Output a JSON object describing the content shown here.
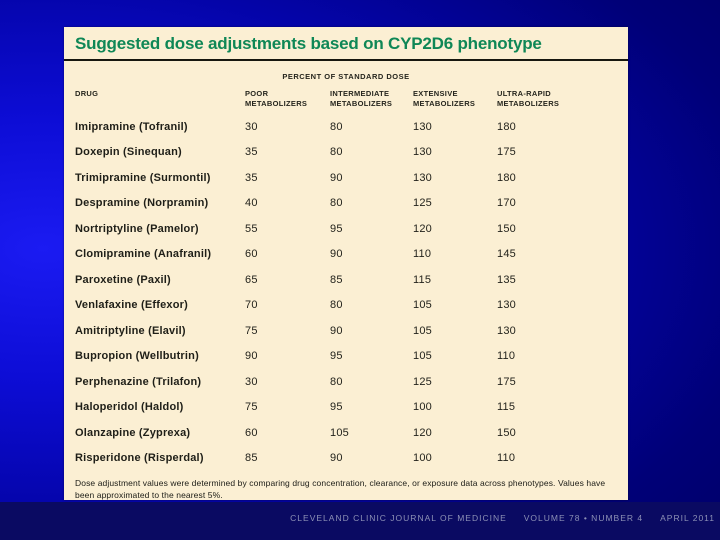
{
  "slide": {
    "title": "Suggested dose adjustments based on CYP2D6 phenotype",
    "table": {
      "group_header": "PERCENT OF STANDARD DOSE",
      "columns": [
        "DRUG",
        "POOR METABOLIZERS",
        "INTERMEDIATE METABOLIZERS",
        "EXTENSIVE METABOLIZERS",
        "ULTRA-RAPID METABOLIZERS"
      ],
      "rows": [
        {
          "drug": "Imipramine (Tofranil)",
          "values": [
            30,
            80,
            130,
            180
          ]
        },
        {
          "drug": "Doxepin (Sinequan)",
          "values": [
            35,
            80,
            130,
            175
          ]
        },
        {
          "drug": "Trimipramine (Surmontil)",
          "values": [
            35,
            90,
            130,
            180
          ]
        },
        {
          "drug": "Despramine (Norpramin)",
          "values": [
            40,
            80,
            125,
            170
          ]
        },
        {
          "drug": "Nortriptyline (Pamelor)",
          "values": [
            55,
            95,
            120,
            150
          ]
        },
        {
          "drug": "Clomipramine (Anafranil)",
          "values": [
            60,
            90,
            110,
            145
          ]
        },
        {
          "drug": "Paroxetine (Paxil)",
          "values": [
            65,
            85,
            115,
            135
          ]
        },
        {
          "drug": "Venlafaxine (Effexor)",
          "values": [
            70,
            80,
            105,
            130
          ]
        },
        {
          "drug": "Amitriptyline (Elavil)",
          "values": [
            75,
            90,
            105,
            130
          ]
        },
        {
          "drug": "Bupropion (Wellbutrin)",
          "values": [
            90,
            95,
            105,
            110
          ]
        },
        {
          "drug": "Perphenazine (Trilafon)",
          "values": [
            30,
            80,
            125,
            175
          ]
        },
        {
          "drug": "Haloperidol (Haldol)",
          "values": [
            75,
            95,
            100,
            115
          ]
        },
        {
          "drug": "Olanzapine (Zyprexa)",
          "values": [
            60,
            105,
            120,
            150
          ]
        },
        {
          "drug": "Risperidone (Risperdal)",
          "values": [
            85,
            90,
            100,
            110
          ]
        }
      ],
      "footnote": "Dose adjustment values were determined by comparing drug concentration, clearance, or exposure data across phenotypes. Values have been approximated to the nearest 5%."
    },
    "footer": {
      "journal": "CLEVELAND CLINIC JOURNAL OF MEDICINE",
      "volume": "VOLUME 78 • NUMBER 4",
      "date": "APRIL 2011"
    },
    "colors": {
      "title_green": "#0F8756",
      "panel_cream": "#FBEFD3",
      "background_blue_bright": "#1B1BF2",
      "background_blue_dark": "#000062",
      "footer_band": "#0A0A62",
      "footer_text": "#8D91B6",
      "body_text": "#23231C"
    }
  },
  "chart_data": {
    "type": "table",
    "title": "Suggested dose adjustments based on CYP2D6 phenotype",
    "group_header": "PERCENT OF STANDARD DOSE",
    "categories": [
      "POOR METABOLIZERS",
      "INTERMEDIATE METABOLIZERS",
      "EXTENSIVE METABOLIZERS",
      "ULTRA-RAPID METABOLIZERS"
    ],
    "series": [
      {
        "name": "Imipramine (Tofranil)",
        "values": [
          30,
          80,
          130,
          180
        ]
      },
      {
        "name": "Doxepin (Sinequan)",
        "values": [
          35,
          80,
          130,
          175
        ]
      },
      {
        "name": "Trimipramine (Surmontil)",
        "values": [
          35,
          90,
          130,
          180
        ]
      },
      {
        "name": "Despramine (Norpramin)",
        "values": [
          40,
          80,
          125,
          170
        ]
      },
      {
        "name": "Nortriptyline (Pamelor)",
        "values": [
          55,
          95,
          120,
          150
        ]
      },
      {
        "name": "Clomipramine (Anafranil)",
        "values": [
          60,
          90,
          110,
          145
        ]
      },
      {
        "name": "Paroxetine (Paxil)",
        "values": [
          65,
          85,
          115,
          135
        ]
      },
      {
        "name": "Venlafaxine (Effexor)",
        "values": [
          70,
          80,
          105,
          130
        ]
      },
      {
        "name": "Amitriptyline (Elavil)",
        "values": [
          75,
          90,
          105,
          130
        ]
      },
      {
        "name": "Bupropion (Wellbutrin)",
        "values": [
          90,
          95,
          105,
          110
        ]
      },
      {
        "name": "Perphenazine (Trilafon)",
        "values": [
          30,
          80,
          125,
          175
        ]
      },
      {
        "name": "Haloperidol (Haldol)",
        "values": [
          75,
          95,
          100,
          115
        ]
      },
      {
        "name": "Olanzapine (Zyprexa)",
        "values": [
          60,
          105,
          120,
          150
        ]
      },
      {
        "name": "Risperidone (Risperdal)",
        "values": [
          85,
          90,
          100,
          110
        ]
      }
    ]
  }
}
